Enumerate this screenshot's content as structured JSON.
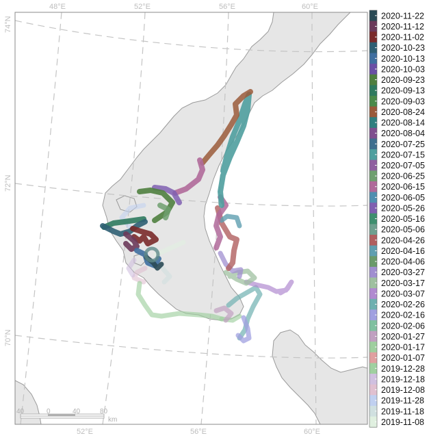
{
  "map": {
    "graticule_labels": {
      "lon_top": [
        "48°E",
        "52°E",
        "56°E",
        "60°E"
      ],
      "lon_bottom": [
        "52°E",
        "56°E",
        "60°E"
      ],
      "lat_left": [
        "74°N",
        "72°N",
        "70°N"
      ]
    },
    "scale_bar": {
      "ticks": [
        "40",
        "0",
        "40",
        "80"
      ],
      "unit": "km"
    },
    "colors": {
      "land": "#e6e6e6",
      "coast": "#9a9a9a",
      "graticule": "#c4c4c4",
      "frame": "#8a8a8a",
      "deploy_marker": "#5f8a8a"
    }
  },
  "legend": {
    "dates": [
      "2020-11-22",
      "2020-11-12",
      "2020-11-02",
      "2020-10-23",
      "2020-10-13",
      "2020-10-03",
      "2020-09-23",
      "2020-09-13",
      "2020-09-03",
      "2020-08-24",
      "2020-08-14",
      "2020-08-04",
      "2020-07-25",
      "2020-07-15",
      "2020-07-05",
      "2020-06-25",
      "2020-06-15",
      "2020-06-05",
      "2020-05-26",
      "2020-05-16",
      "2020-05-06",
      "2020-04-26",
      "2020-04-16",
      "2020-04-06",
      "2020-03-27",
      "2020-03-17",
      "2020-03-07",
      "2020-02-26",
      "2020-02-16",
      "2020-02-06",
      "2020-01-27",
      "2020-01-17",
      "2020-01-07",
      "2019-12-28",
      "2019-12-18",
      "2019-12-08",
      "2019-11-28",
      "2019-11-18",
      "2019-11-08"
    ],
    "colors": [
      "#2a4a55",
      "#6b3a5a",
      "#7a2a2a",
      "#2f5f73",
      "#3f6fa0",
      "#6a4fa5",
      "#4f7f3f",
      "#2f7a5f",
      "#4a8a4a",
      "#9a5a3a",
      "#2f7f7f",
      "#7f4f8f",
      "#3f6f8f",
      "#4f9f9f",
      "#8f5fa0",
      "#6f9f6f",
      "#b06a9a",
      "#4f8fb0",
      "#7f5fb0",
      "#3f8f6f",
      "#6fa08f",
      "#b05f5f",
      "#5f9fb0",
      "#6a9a6a",
      "#a08fd0",
      "#9fc0a0",
      "#b08ad0",
      "#6fb0b0",
      "#a0a0e0",
      "#7fc0a0",
      "#c0a0c0",
      "#9fcf9f",
      "#e0a0a0",
      "#a0d0a0",
      "#d0c0e0",
      "#e0c0d0",
      "#c0d0f0",
      "#d0e0e0",
      "#e0f0e0"
    ]
  }
}
